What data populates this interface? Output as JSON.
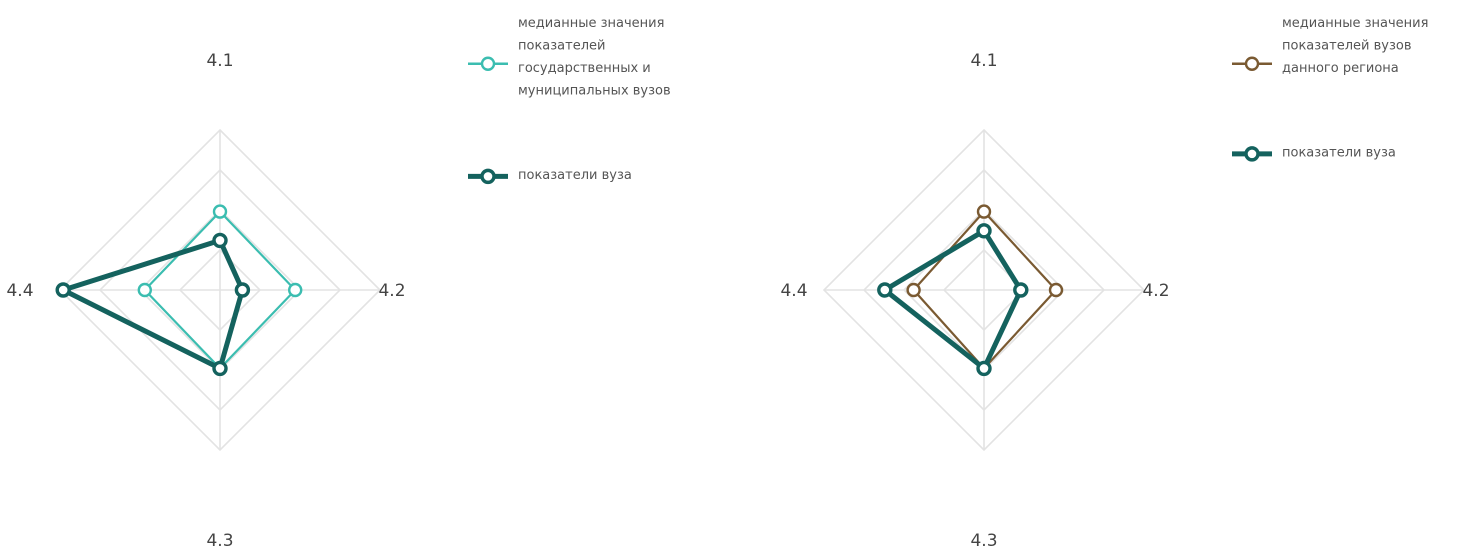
{
  "chart_data": [
    {
      "type": "radar",
      "axes": [
        "4.1",
        "4.2",
        "4.3",
        "4.4"
      ],
      "grid": true,
      "legend_position": "right",
      "series": [
        {
          "name": "медианные значения показателей государственных и муниципальных вузов",
          "legend_lines": [
            "медианные значения",
            "показателей",
            "государственных и",
            "муниципальных вузов"
          ],
          "values": [
            0.49,
            0.47,
            0.49,
            0.47
          ],
          "color": "#3bbdb0",
          "line": "thin"
        },
        {
          "name": "показатели вуза",
          "legend_lines": [
            "показатели вуза"
          ],
          "values": [
            0.31,
            0.14,
            0.49,
            0.98
          ],
          "color": "#14625e",
          "line": "thick"
        }
      ]
    },
    {
      "type": "radar",
      "axes": [
        "4.1",
        "4.2",
        "4.3",
        "4.4"
      ],
      "grid": true,
      "legend_position": "right",
      "series": [
        {
          "name": "медианные значения показателей вузов данного региона",
          "legend_lines": [
            "медианные значения",
            "показателей вузов",
            "данного региона"
          ],
          "values": [
            0.49,
            0.45,
            0.49,
            0.44
          ],
          "color": "#7a5a32",
          "line": "thin"
        },
        {
          "name": "показатели вуза",
          "legend_lines": [
            "показатели вуза"
          ],
          "values": [
            0.37,
            0.23,
            0.49,
            0.62
          ],
          "color": "#14625e",
          "line": "thick"
        }
      ]
    }
  ]
}
